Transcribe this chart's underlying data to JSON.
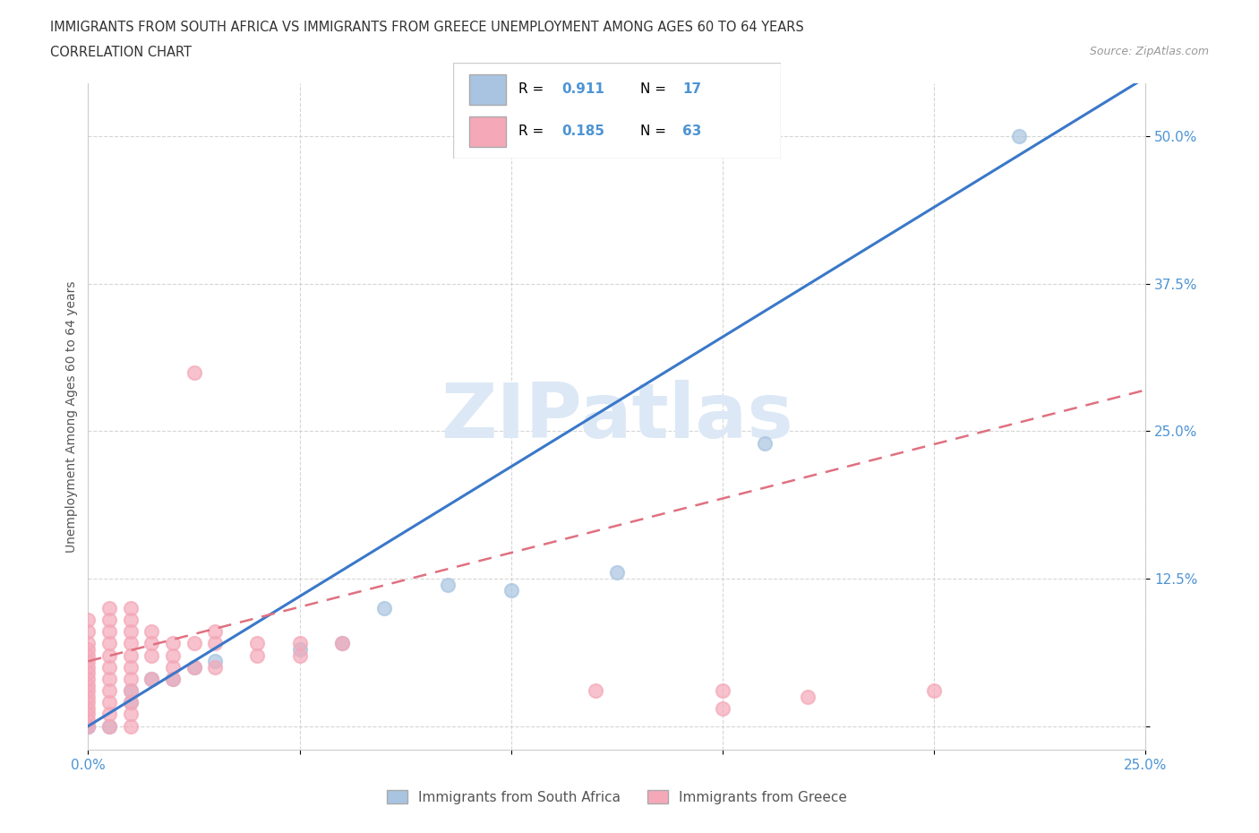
{
  "title_line1": "IMMIGRANTS FROM SOUTH AFRICA VS IMMIGRANTS FROM GREECE UNEMPLOYMENT AMONG AGES 60 TO 64 YEARS",
  "title_line2": "CORRELATION CHART",
  "source_text": "Source: ZipAtlas.com",
  "ylabel": "Unemployment Among Ages 60 to 64 years",
  "xlim": [
    0.0,
    0.25
  ],
  "ylim": [
    -0.02,
    0.545
  ],
  "xticks": [
    0.0,
    0.05,
    0.1,
    0.15,
    0.2,
    0.25
  ],
  "xticklabels": [
    "0.0%",
    "",
    "",
    "",
    "",
    "25.0%"
  ],
  "yticks": [
    0.0,
    0.125,
    0.25,
    0.375,
    0.5
  ],
  "yticklabels": [
    "",
    "12.5%",
    "25.0%",
    "37.5%",
    "50.0%"
  ],
  "R_south_africa": 0.911,
  "N_south_africa": 17,
  "R_greece": 0.185,
  "N_greece": 63,
  "south_africa_color": "#a8c4e0",
  "greece_color": "#f4a8b8",
  "trend_south_africa_color": "#3a78c9",
  "trend_greece_color": "#e07080",
  "watermark_color": "#dce8f5",
  "legend_label_sa": "Immigrants from South Africa",
  "legend_label_gr": "Immigrants from Greece",
  "south_africa_scatter": [
    [
      0.0,
      0.0
    ],
    [
      0.0,
      0.0
    ],
    [
      0.005,
      0.0
    ],
    [
      0.01,
      0.02
    ],
    [
      0.01,
      0.03
    ],
    [
      0.015,
      0.04
    ],
    [
      0.02,
      0.04
    ],
    [
      0.025,
      0.05
    ],
    [
      0.03,
      0.055
    ],
    [
      0.05,
      0.065
    ],
    [
      0.06,
      0.07
    ],
    [
      0.07,
      0.1
    ],
    [
      0.085,
      0.12
    ],
    [
      0.1,
      0.115
    ],
    [
      0.125,
      0.13
    ],
    [
      0.16,
      0.24
    ],
    [
      0.22,
      0.5
    ]
  ],
  "greece_scatter": [
    [
      0.0,
      0.0
    ],
    [
      0.0,
      0.005
    ],
    [
      0.0,
      0.01
    ],
    [
      0.0,
      0.015
    ],
    [
      0.0,
      0.02
    ],
    [
      0.0,
      0.025
    ],
    [
      0.0,
      0.03
    ],
    [
      0.0,
      0.035
    ],
    [
      0.0,
      0.04
    ],
    [
      0.0,
      0.045
    ],
    [
      0.0,
      0.05
    ],
    [
      0.0,
      0.055
    ],
    [
      0.0,
      0.06
    ],
    [
      0.0,
      0.065
    ],
    [
      0.0,
      0.07
    ],
    [
      0.0,
      0.08
    ],
    [
      0.0,
      0.09
    ],
    [
      0.005,
      0.0
    ],
    [
      0.005,
      0.01
    ],
    [
      0.005,
      0.02
    ],
    [
      0.005,
      0.03
    ],
    [
      0.005,
      0.04
    ],
    [
      0.005,
      0.05
    ],
    [
      0.005,
      0.06
    ],
    [
      0.005,
      0.07
    ],
    [
      0.005,
      0.08
    ],
    [
      0.005,
      0.09
    ],
    [
      0.005,
      0.1
    ],
    [
      0.01,
      0.0
    ],
    [
      0.01,
      0.01
    ],
    [
      0.01,
      0.02
    ],
    [
      0.01,
      0.03
    ],
    [
      0.01,
      0.04
    ],
    [
      0.01,
      0.05
    ],
    [
      0.01,
      0.06
    ],
    [
      0.01,
      0.07
    ],
    [
      0.01,
      0.08
    ],
    [
      0.01,
      0.09
    ],
    [
      0.01,
      0.1
    ],
    [
      0.015,
      0.04
    ],
    [
      0.015,
      0.06
    ],
    [
      0.015,
      0.07
    ],
    [
      0.015,
      0.08
    ],
    [
      0.02,
      0.04
    ],
    [
      0.02,
      0.05
    ],
    [
      0.02,
      0.06
    ],
    [
      0.02,
      0.07
    ],
    [
      0.025,
      0.05
    ],
    [
      0.025,
      0.07
    ],
    [
      0.03,
      0.05
    ],
    [
      0.03,
      0.07
    ],
    [
      0.03,
      0.08
    ],
    [
      0.04,
      0.06
    ],
    [
      0.04,
      0.07
    ],
    [
      0.05,
      0.06
    ],
    [
      0.05,
      0.07
    ],
    [
      0.06,
      0.07
    ],
    [
      0.025,
      0.3
    ],
    [
      0.12,
      0.03
    ],
    [
      0.15,
      0.03
    ],
    [
      0.15,
      0.015
    ],
    [
      0.17,
      0.025
    ],
    [
      0.2,
      0.03
    ]
  ]
}
